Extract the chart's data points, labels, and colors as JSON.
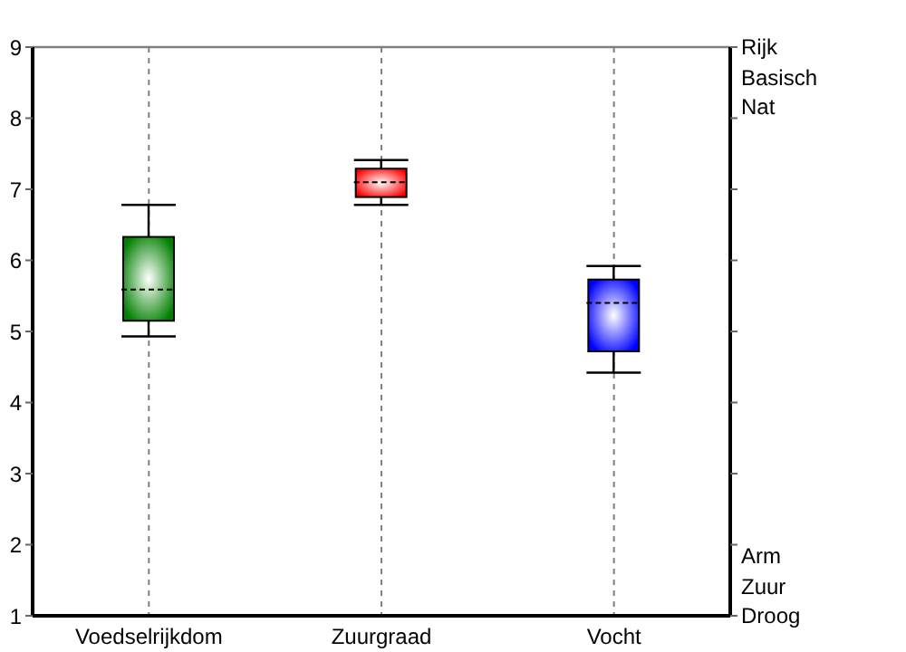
{
  "chart_data": {
    "type": "box",
    "categories": [
      "Voedselrijkdom",
      "Zuurgraad",
      "Vocht"
    ],
    "boxes": [
      {
        "low": 4.93,
        "q1": 5.15,
        "median": 5.59,
        "q3": 6.33,
        "high": 6.78
      },
      {
        "low": 6.78,
        "q1": 6.89,
        "median": 7.1,
        "q3": 7.29,
        "high": 7.41
      },
      {
        "low": 4.42,
        "q1": 4.72,
        "median": 5.4,
        "q3": 5.73,
        "high": 5.92
      }
    ],
    "colors": [
      "#008000",
      "#ff0000",
      "#0000ff"
    ],
    "ylim": [
      1,
      9
    ],
    "yticks": [
      1,
      2,
      3,
      4,
      5,
      6,
      7,
      8,
      9
    ],
    "grid": true,
    "annotations": [
      "Rijk",
      "Basisch",
      "Nat",
      "Arm",
      "Zuur",
      "Droog"
    ]
  }
}
